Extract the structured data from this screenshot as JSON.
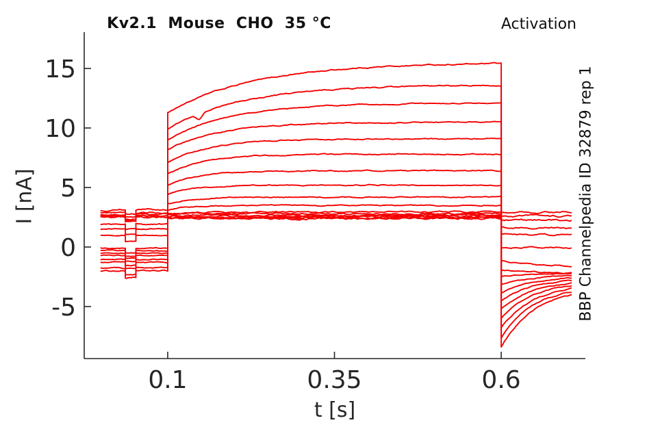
{
  "chart_data": {
    "type": "line",
    "title": "Kv2.1  Mouse  CHO  35 °C",
    "top_right_label": "Activation",
    "right_label": "BBP Channelpedia ID 32879 rep 1",
    "xlabel": "t [s]",
    "ylabel": "I [nA]",
    "x_axis": {
      "ticks": [
        0.1,
        0.35,
        0.6
      ],
      "labels": [
        "0.1",
        "0.35",
        "0.6"
      ]
    },
    "y_axis": {
      "ticks": [
        -5,
        0,
        5,
        10,
        15
      ],
      "labels": [
        "-5",
        "0",
        "5",
        "10",
        "15"
      ]
    },
    "xlim": [
      -0.0252,
      0.7262
    ],
    "ylim": [
      -9.37,
      18.05
    ],
    "grid": false,
    "legend": "none",
    "line_color": "#f40000",
    "axis_color": "#262626",
    "protocol": {
      "t_start": 0.0,
      "test_dip_window": [
        0.0365,
        0.0523
      ],
      "pulse_window": [
        0.1,
        0.6
      ],
      "t_end": 0.705
    },
    "sweeps": [
      {
        "baseline": -2.0,
        "dip": 0.6,
        "pulse_start": 11.3,
        "pulse_end": 15.5,
        "tau_act": 0.13,
        "tail_start": -8.45,
        "tail_end": -4.0,
        "tau_tail": 0.05,
        "noise": 0.06,
        "notch": false
      },
      {
        "baseline": -1.75,
        "dip": 0.55,
        "pulse_start": 9.9,
        "pulse_end": 13.6,
        "tau_act": 0.11,
        "tail_start": -7.6,
        "tail_end": -3.75,
        "tau_tail": 0.05,
        "noise": 0.06,
        "notch": true
      },
      {
        "baseline": -1.3,
        "dip": 0.55,
        "pulse_start": 9.0,
        "pulse_end": 12.1,
        "tau_act": 0.095,
        "tail_start": -6.8,
        "tail_end": -3.5,
        "tau_tail": 0.05,
        "noise": 0.05,
        "notch": false
      },
      {
        "baseline": -1.05,
        "dip": 0.5,
        "pulse_start": 8.2,
        "pulse_end": 10.5,
        "tau_act": 0.08,
        "tail_start": -6.0,
        "tail_end": -3.25,
        "tau_tail": 0.05,
        "noise": 0.05,
        "notch": false
      },
      {
        "baseline": -0.7,
        "dip": 0.5,
        "pulse_start": 7.1,
        "pulse_end": 9.1,
        "tau_act": 0.065,
        "tail_start": -5.2,
        "tail_end": -3.0,
        "tau_tail": 0.05,
        "noise": 0.05,
        "notch": false
      },
      {
        "baseline": -0.5,
        "dip": 0.45,
        "pulse_start": 6.2,
        "pulse_end": 7.8,
        "tau_act": 0.055,
        "tail_start": -4.5,
        "tail_end": -2.8,
        "tau_tail": 0.05,
        "noise": 0.05,
        "notch": false
      },
      {
        "baseline": -0.3,
        "dip": 0.45,
        "pulse_start": 5.2,
        "pulse_end": 6.4,
        "tau_act": 0.045,
        "tail_start": -3.85,
        "tail_end": -2.6,
        "tau_tail": 0.05,
        "noise": 0.05,
        "notch": false
      },
      {
        "baseline": -0.1,
        "dip": 0.4,
        "pulse_start": 4.4,
        "pulse_end": 5.2,
        "tau_act": 0.04,
        "tail_start": -3.15,
        "tail_end": -2.4,
        "tau_tail": 0.05,
        "noise": 0.05,
        "notch": false
      },
      {
        "baseline": 1.0,
        "dip": 0.5,
        "pulse_start": 3.6,
        "pulse_end": 4.2,
        "tau_act": 0.035,
        "tail_start": -2.5,
        "tail_end": -2.2,
        "tau_tail": 0.06,
        "noise": 0.05,
        "notch": false
      },
      {
        "baseline": 1.5,
        "dip": 0.45,
        "pulse_start": 3.1,
        "pulse_end": 3.5,
        "tau_act": 0.03,
        "tail_start": -1.95,
        "tail_end": -2.2,
        "tau_tail": 0.08,
        "noise": 0.05,
        "notch": false
      },
      {
        "baseline": 1.9,
        "dip": 0.45,
        "pulse_start": 2.75,
        "pulse_end": 2.95,
        "tau_act": 0.025,
        "tail_start": -1.2,
        "tail_end": -1.6,
        "tau_tail": 0.09,
        "noise": 0.07,
        "notch": false
      },
      {
        "baseline": 2.6,
        "dip": 0.4,
        "pulse_start": 2.8,
        "pulse_end": 2.8,
        "tau_act": 0.02,
        "tail_start": 0.0,
        "tail_end": -0.05,
        "tau_tail": 0.3,
        "noise": 0.08,
        "notch": false
      },
      {
        "baseline": 2.75,
        "dip": 0.4,
        "pulse_start": 2.7,
        "pulse_end": 2.7,
        "tau_act": 0.02,
        "tail_start": 1.05,
        "tail_end": 1.0,
        "tau_tail": 0.3,
        "noise": 0.08,
        "notch": false
      },
      {
        "baseline": 2.9,
        "dip": 0.35,
        "pulse_start": 2.6,
        "pulse_end": 2.6,
        "tau_act": 0.02,
        "tail_start": 1.65,
        "tail_end": 1.6,
        "tau_tail": 0.3,
        "noise": 0.08,
        "notch": false
      },
      {
        "baseline": 3.1,
        "dip": 0.35,
        "pulse_start": 2.5,
        "pulse_end": 2.5,
        "tau_act": 0.02,
        "tail_start": 2.3,
        "tail_end": 2.25,
        "tau_tail": 0.3,
        "noise": 0.09,
        "notch": false
      },
      {
        "baseline": 2.5,
        "dip": 0.4,
        "pulse_start": 2.45,
        "pulse_end": 2.45,
        "tau_act": 0.02,
        "tail_start": 2.6,
        "tail_end": 2.6,
        "tau_tail": 0.3,
        "noise": 0.09,
        "notch": false
      },
      {
        "baseline": 2.65,
        "dip": 0.4,
        "pulse_start": 2.4,
        "pulse_end": 2.4,
        "tau_act": 0.02,
        "tail_start": 2.9,
        "tail_end": 2.9,
        "tau_tail": 0.3,
        "noise": 0.09,
        "notch": false
      }
    ]
  }
}
